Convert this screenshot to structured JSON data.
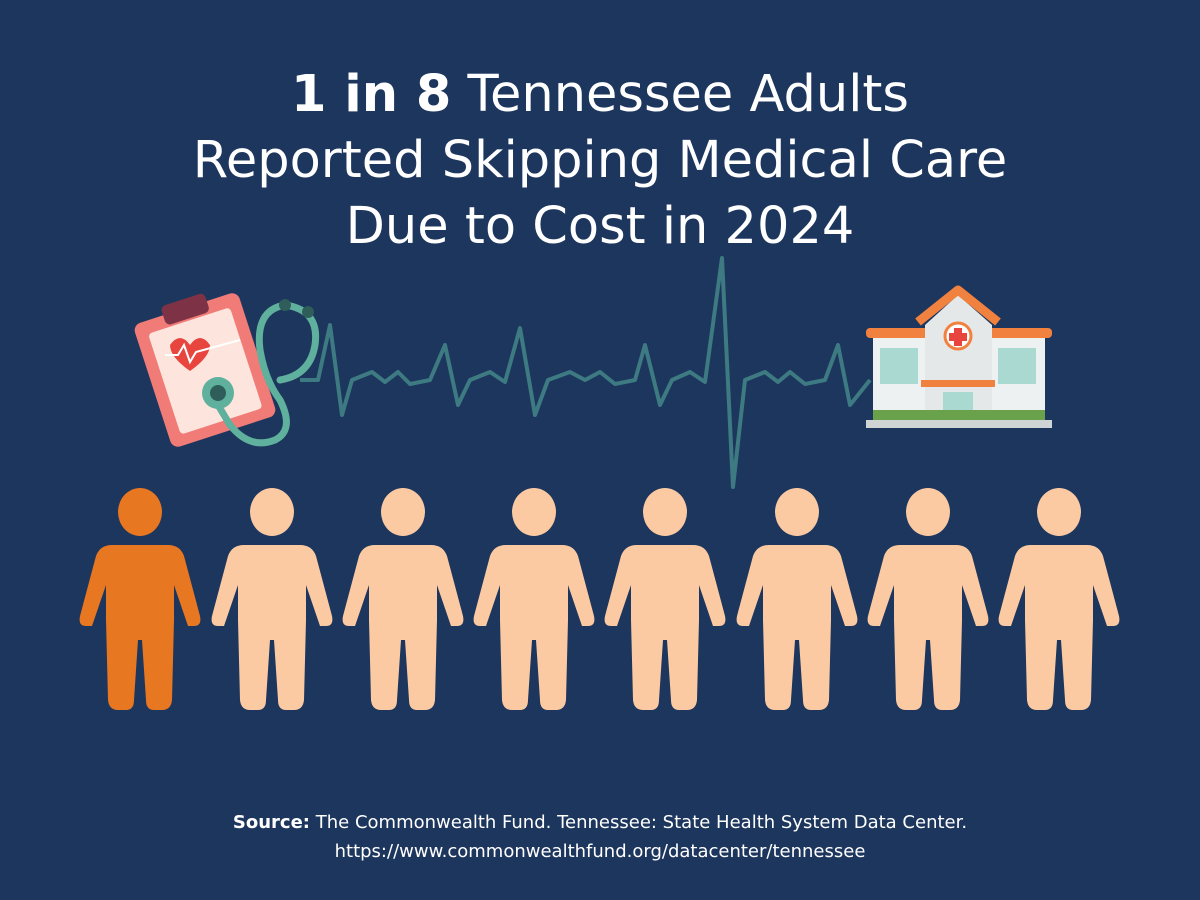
{
  "header": {
    "title_bold": "1 in 8",
    "title_line1": "Tennessee Adults",
    "title_line2": "Reported Skipping Medical Care",
    "title_line3": "Due to Cost in 2024"
  },
  "footer": {
    "source_label": "Source:",
    "source_text": "The Commonwealth Fund. Tennessee: State Health System Data Center.",
    "url": "https://www.commonwealthfund.org/datacenter/tennessee"
  }
}
